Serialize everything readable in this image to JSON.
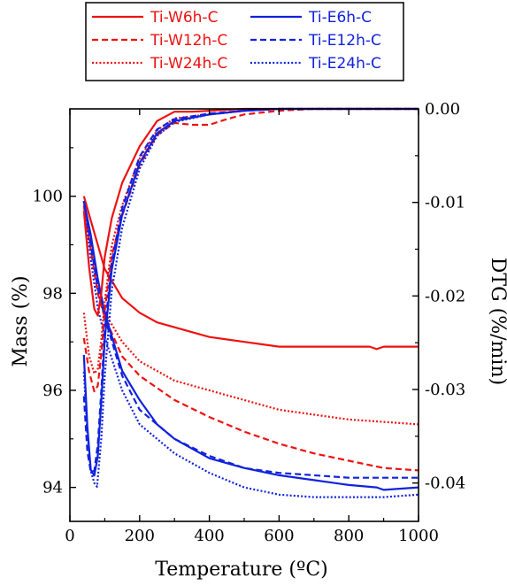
{
  "chart_data": {
    "type": "line",
    "xlabel": "Temperature (ºC)",
    "ylabel_left": "Mass (%)",
    "ylabel_right": "DTG (%/min)",
    "xlim": [
      0,
      1000
    ],
    "ylim_left": [
      93.3,
      101.8
    ],
    "ylim_right": [
      -0.0441,
      0.0
    ],
    "x_ticks": [
      "0",
      "200",
      "400",
      "600",
      "800",
      "1000"
    ],
    "y_left_ticks": [
      "94",
      "96",
      "98",
      "100"
    ],
    "y_right_ticks": [
      "0.00",
      "-0.01",
      "-0.02",
      "-0.03",
      "-0.04"
    ],
    "grid": false,
    "legend_position": "top",
    "legend": [
      {
        "label": "Ti-W6h-C",
        "color": "#ee1111",
        "style": "solid"
      },
      {
        "label": "Ti-E6h-C",
        "color": "#1122dd",
        "style": "solid"
      },
      {
        "label": "Ti-W12h-C",
        "color": "#ee1111",
        "style": "dashed"
      },
      {
        "label": "Ti-E12h-C",
        "color": "#1122dd",
        "style": "dashed"
      },
      {
        "label": "Ti-W24h-C",
        "color": "#ee1111",
        "style": "dotted"
      },
      {
        "label": "Ti-E24h-C",
        "color": "#1122dd",
        "style": "dotted"
      }
    ],
    "series": [
      {
        "name": "Ti-W6h-C",
        "axis": "left",
        "color": "#ee1111",
        "style": "solid",
        "x": [
          40,
          60,
          80,
          100,
          150,
          200,
          250,
          300,
          400,
          500,
          600,
          700,
          800,
          860,
          880,
          900,
          1000
        ],
        "y": [
          100,
          99.5,
          99.0,
          98.5,
          97.9,
          97.6,
          97.4,
          97.3,
          97.1,
          97.0,
          96.9,
          96.9,
          96.9,
          96.9,
          96.85,
          96.9,
          96.9
        ]
      },
      {
        "name": "Ti-W12h-C",
        "axis": "left",
        "color": "#ee1111",
        "style": "dashed",
        "x": [
          40,
          60,
          80,
          100,
          150,
          200,
          300,
          400,
          500,
          600,
          700,
          800,
          900,
          1000
        ],
        "y": [
          99.8,
          98.9,
          98.0,
          97.5,
          96.7,
          96.3,
          95.8,
          95.45,
          95.15,
          94.9,
          94.7,
          94.55,
          94.4,
          94.35
        ]
      },
      {
        "name": "Ti-W24h-C",
        "axis": "left",
        "color": "#ee1111",
        "style": "dotted",
        "x": [
          40,
          60,
          80,
          100,
          150,
          200,
          300,
          400,
          500,
          600,
          700,
          800,
          900,
          1000
        ],
        "y": [
          99.9,
          99.0,
          98.1,
          97.6,
          97.0,
          96.6,
          96.2,
          96.0,
          95.8,
          95.6,
          95.5,
          95.4,
          95.35,
          95.3
        ]
      },
      {
        "name": "Ti-E6h-C",
        "axis": "left",
        "color": "#1122dd",
        "style": "solid",
        "x": [
          40,
          60,
          80,
          100,
          150,
          200,
          250,
          300,
          400,
          500,
          600,
          700,
          800,
          880,
          900,
          1000
        ],
        "y": [
          99.9,
          99.2,
          98.3,
          97.6,
          96.4,
          95.8,
          95.3,
          95.0,
          94.6,
          94.4,
          94.25,
          94.15,
          94.05,
          94.0,
          93.95,
          94.0
        ]
      },
      {
        "name": "Ti-E12h-C",
        "axis": "left",
        "color": "#1122dd",
        "style": "dashed",
        "x": [
          40,
          60,
          80,
          100,
          150,
          200,
          300,
          400,
          500,
          600,
          700,
          800,
          900,
          1000
        ],
        "y": [
          99.9,
          99.0,
          98.1,
          97.5,
          96.3,
          95.6,
          95.0,
          94.65,
          94.4,
          94.3,
          94.25,
          94.2,
          94.2,
          94.2
        ]
      },
      {
        "name": "Ti-E24h-C",
        "axis": "left",
        "color": "#1122dd",
        "style": "dotted",
        "x": [
          40,
          60,
          80,
          100,
          150,
          200,
          300,
          400,
          500,
          600,
          700,
          800,
          900,
          1000
        ],
        "y": [
          99.9,
          98.7,
          97.7,
          97.1,
          96.0,
          95.3,
          94.7,
          94.3,
          94.0,
          93.85,
          93.8,
          93.8,
          93.8,
          93.85
        ]
      },
      {
        "name": "Ti-W6h-C",
        "axis": "right",
        "color": "#ee1111",
        "style": "solid",
        "x": [
          40,
          55,
          70,
          80,
          90,
          100,
          120,
          150,
          200,
          250,
          300,
          350,
          400,
          500,
          600,
          700,
          800,
          1000
        ],
        "y": [
          -0.0109,
          -0.0169,
          -0.0214,
          -0.0221,
          -0.0197,
          -0.0158,
          -0.0117,
          -0.0079,
          -0.004,
          -0.0013,
          -0.0003,
          -0.0003,
          -0.0002,
          0.0,
          0.0,
          0.0,
          0.0,
          0.0
        ]
      },
      {
        "name": "Ti-W12h-C",
        "axis": "right",
        "color": "#ee1111",
        "style": "dashed",
        "x": [
          40,
          55,
          70,
          80,
          90,
          100,
          120,
          150,
          200,
          250,
          300,
          350,
          400,
          450,
          500,
          600,
          700,
          800,
          1000
        ],
        "y": [
          -0.0245,
          -0.0281,
          -0.0302,
          -0.0296,
          -0.0262,
          -0.0216,
          -0.0157,
          -0.0114,
          -0.006,
          -0.0028,
          -0.0015,
          -0.0017,
          -0.0017,
          -0.0011,
          -0.0006,
          -0.0002,
          0.0,
          0.0,
          0.0
        ]
      },
      {
        "name": "Ti-W24h-C",
        "axis": "right",
        "color": "#ee1111",
        "style": "dotted",
        "x": [
          40,
          55,
          70,
          80,
          90,
          100,
          120,
          150,
          200,
          250,
          300,
          400,
          500,
          600,
          700,
          800,
          1000
        ],
        "y": [
          -0.0218,
          -0.0264,
          -0.0283,
          -0.0278,
          -0.0247,
          -0.0206,
          -0.0146,
          -0.0103,
          -0.0053,
          -0.0023,
          -0.001,
          -0.0006,
          -0.0002,
          0.0,
          0.0,
          0.0,
          0.0
        ]
      },
      {
        "name": "Ti-E6h-C",
        "axis": "right",
        "color": "#1122dd",
        "style": "solid",
        "x": [
          40,
          50,
          60,
          70,
          80,
          90,
          100,
          120,
          150,
          200,
          250,
          300,
          400,
          500,
          600,
          700,
          1000
        ],
        "y": [
          -0.0263,
          -0.0339,
          -0.0386,
          -0.0392,
          -0.0371,
          -0.0313,
          -0.0246,
          -0.0172,
          -0.0113,
          -0.0058,
          -0.0026,
          -0.0013,
          -0.0006,
          -0.0002,
          0.0,
          0.0,
          0.0
        ]
      },
      {
        "name": "Ti-E12h-C",
        "axis": "right",
        "color": "#1122dd",
        "style": "dashed",
        "x": [
          40,
          50,
          60,
          70,
          80,
          90,
          100,
          120,
          150,
          200,
          250,
          300,
          400,
          500,
          600,
          700,
          1000
        ],
        "y": [
          -0.0307,
          -0.0366,
          -0.0388,
          -0.0387,
          -0.0359,
          -0.0301,
          -0.0237,
          -0.0164,
          -0.0106,
          -0.0051,
          -0.0022,
          -0.0011,
          -0.0005,
          -0.0002,
          0.0,
          0.0,
          0.0
        ]
      },
      {
        "name": "Ti-E24h-C",
        "axis": "right",
        "color": "#1122dd",
        "style": "dotted",
        "x": [
          40,
          50,
          60,
          70,
          78,
          90,
          100,
          120,
          150,
          200,
          250,
          300,
          400,
          500,
          600,
          700,
          1000
        ],
        "y": [
          -0.0281,
          -0.0347,
          -0.0387,
          -0.04,
          -0.0404,
          -0.0352,
          -0.0285,
          -0.0194,
          -0.0127,
          -0.0064,
          -0.0029,
          -0.0014,
          -0.0006,
          -0.0002,
          0.0,
          0.0,
          0.0
        ]
      }
    ]
  }
}
